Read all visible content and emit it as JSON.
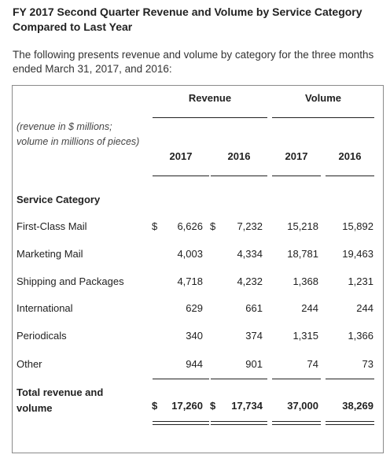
{
  "title": "FY 2017 Second Quarter Revenue and Volume by Service Category Compared to Last Year",
  "intro": "The following presents revenue and volume by category for the three months ended March 31, 2017, and 2016:",
  "table": {
    "group_revenue": "Revenue",
    "group_volume": "Volume",
    "note": "(revenue in $ millions; volume in millions of pieces)",
    "year_2017": "2017",
    "year_2016": "2016",
    "section_label": "Service Category",
    "currency": "$",
    "rows": [
      {
        "label": "First-Class Mail",
        "rev_2017": "6,626",
        "rev_2016": "7,232",
        "vol_2017": "15,218",
        "vol_2016": "15,892"
      },
      {
        "label": "Marketing Mail",
        "rev_2017": "4,003",
        "rev_2016": "4,334",
        "vol_2017": "18,781",
        "vol_2016": "19,463"
      },
      {
        "label": "Shipping and Packages",
        "rev_2017": "4,718",
        "rev_2016": "4,232",
        "vol_2017": "1,368",
        "vol_2016": "1,231"
      },
      {
        "label": "International",
        "rev_2017": "629",
        "rev_2016": "661",
        "vol_2017": "244",
        "vol_2016": "244"
      },
      {
        "label": "Periodicals",
        "rev_2017": "340",
        "rev_2016": "374",
        "vol_2017": "1,315",
        "vol_2016": "1,366"
      },
      {
        "label": "Other",
        "rev_2017": "944",
        "rev_2016": "901",
        "vol_2017": "74",
        "vol_2016": "73"
      }
    ],
    "total": {
      "label": "Total revenue and volume",
      "rev_2017": "17,260",
      "rev_2016": "17,734",
      "vol_2017": "37,000",
      "vol_2016": "38,269"
    }
  }
}
